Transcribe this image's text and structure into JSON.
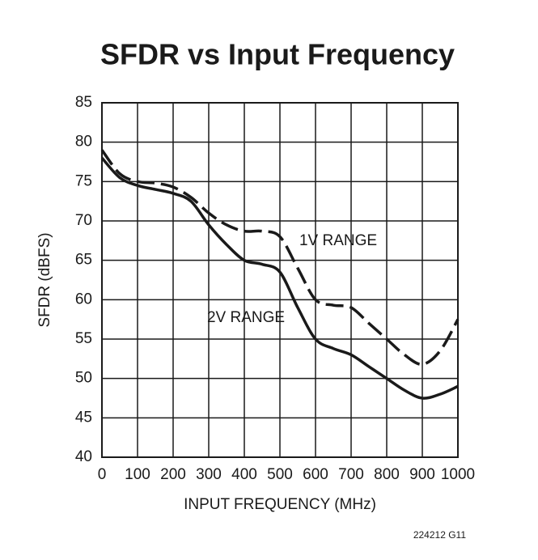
{
  "chart_data": {
    "type": "line",
    "title": "SFDR vs Input Frequency",
    "x_label": "INPUT FREQUENCY (MHz)",
    "y_label": "SFDR (dBFS)",
    "footnote": "224212 G11",
    "x": [
      0,
      50,
      100,
      150,
      200,
      250,
      300,
      350,
      400,
      450,
      500,
      550,
      600,
      650,
      700,
      750,
      800,
      850,
      900,
      950,
      1000
    ],
    "series": [
      {
        "name": "1V RANGE",
        "color": "#1a1a1a",
        "dash": true,
        "values": [
          79,
          76,
          75,
          74.8,
          74.3,
          73,
          71,
          69.5,
          68.7,
          68.7,
          68,
          64,
          60,
          59.3,
          59,
          57,
          55,
          53,
          51.8,
          53.5,
          57.5
        ]
      },
      {
        "name": "2V RANGE",
        "color": "#1a1a1a",
        "dash": false,
        "values": [
          78,
          75.5,
          74.5,
          74,
          73.5,
          72.5,
          69.5,
          67,
          65,
          64.5,
          63.5,
          59,
          55,
          53.8,
          53,
          51.5,
          50,
          48.5,
          47.5,
          48,
          49
        ]
      }
    ],
    "xlim": [
      0,
      1000
    ],
    "xticks": [
      0,
      100,
      200,
      300,
      400,
      500,
      600,
      700,
      800,
      900,
      1000
    ],
    "ylim": [
      40,
      85
    ],
    "yticks": [
      40,
      45,
      50,
      55,
      60,
      65,
      70,
      75,
      80,
      85
    ],
    "grid": true
  }
}
